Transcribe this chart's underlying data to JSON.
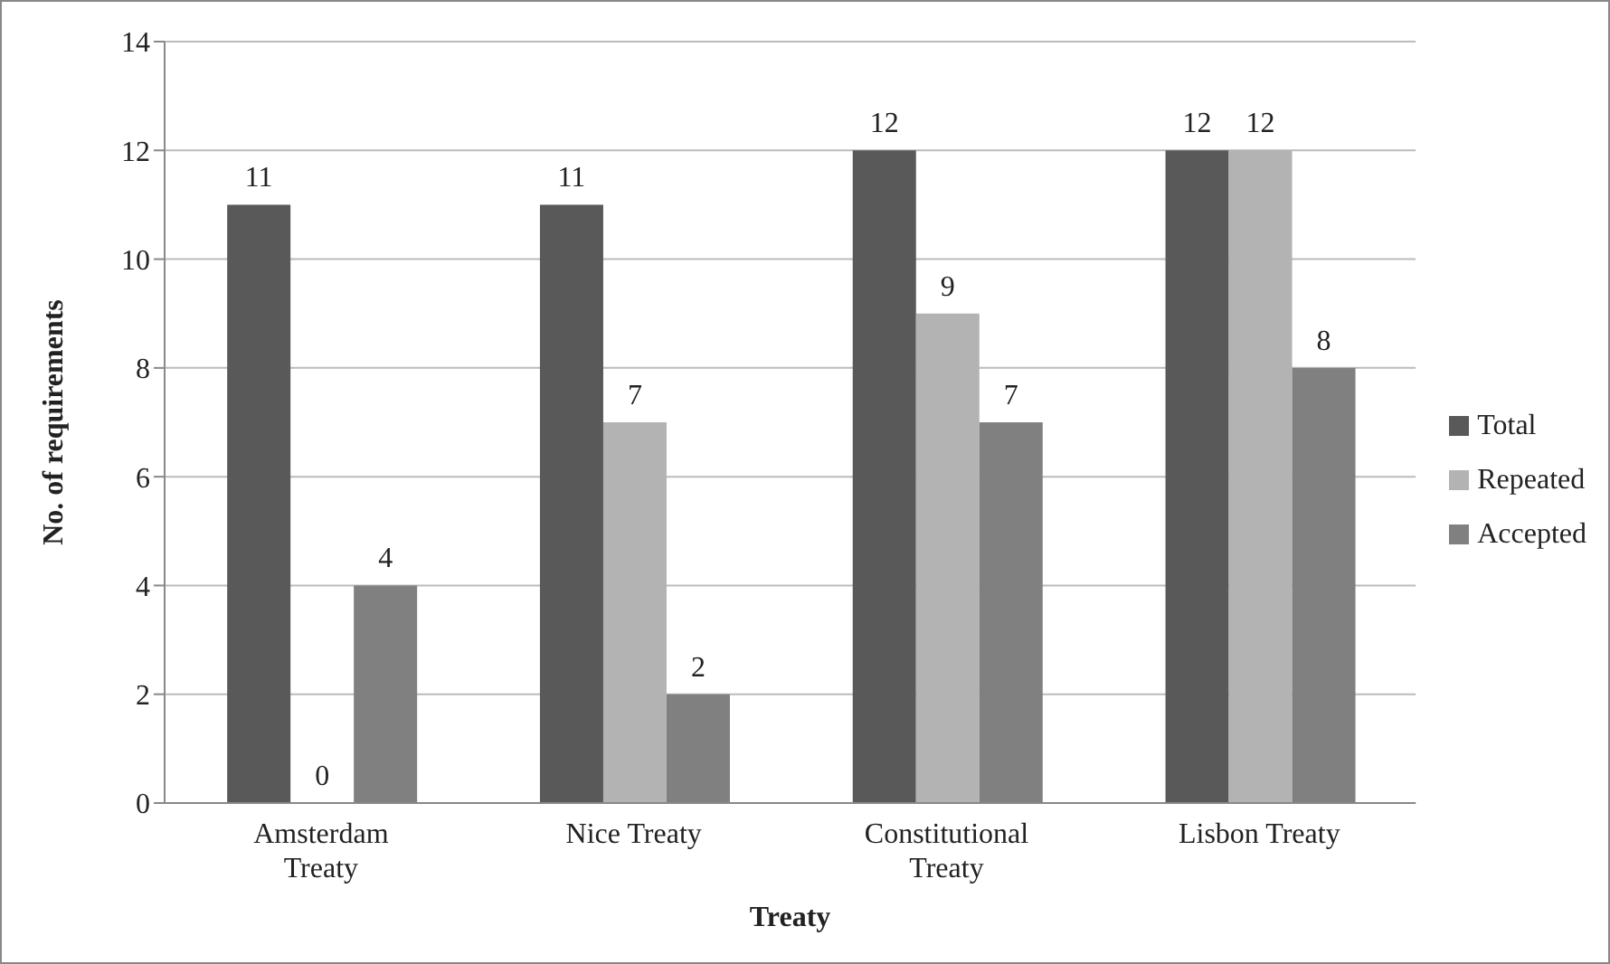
{
  "chart_data": {
    "type": "bar",
    "xlabel": "Treaty",
    "ylabel": "No. of requirements",
    "categories": [
      "Amsterdam Treaty",
      "Nice Treaty",
      "Constitutional Treaty",
      "Lisbon Treaty"
    ],
    "series": [
      {
        "name": "Total",
        "color": "#595959",
        "values": [
          11,
          11,
          12,
          12
        ]
      },
      {
        "name": "Repeated",
        "color": "#b3b3b3",
        "values": [
          0,
          7,
          9,
          12
        ]
      },
      {
        "name": "Accepted",
        "color": "#808080",
        "values": [
          4,
          2,
          7,
          8
        ]
      }
    ],
    "ylim": [
      0,
      14
    ],
    "yticks": [
      0,
      2,
      4,
      6,
      8,
      10,
      12,
      14
    ],
    "grid": "y",
    "legend": "right",
    "data_labels": true
  }
}
